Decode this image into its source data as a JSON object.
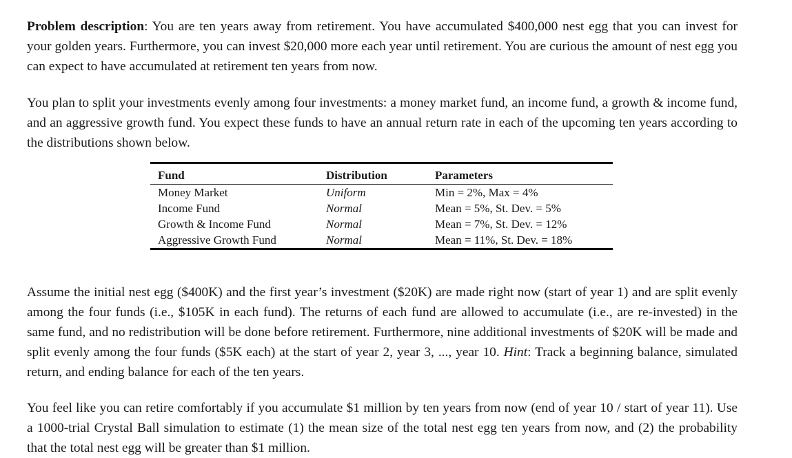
{
  "problem": {
    "label": "Problem description",
    "sep": ":",
    "text": " You are ten years away from retirement. You have accumulated $400,000 nest egg that you can invest for your golden years. Furthermore, you can invest $20,000 more each year until retirement. You are curious the amount of nest egg you can expect to have accumulated at retirement ten years from now."
  },
  "plan": {
    "text": "You plan to split your investments evenly among four investments: a money market fund, an income fund, a growth & income fund, and an aggressive growth fund. You expect these funds to have an annual return rate in each of the upcoming ten years according to the distributions shown below."
  },
  "table": {
    "headers": [
      "Fund",
      "Distribution",
      "Parameters"
    ],
    "rows": [
      {
        "fund": "Money Market",
        "distribution": "Uniform",
        "parameters": "Min = 2%, Max = 4%"
      },
      {
        "fund": "Income Fund",
        "distribution": "Normal",
        "parameters": "Mean = 5%, St. Dev. = 5%"
      },
      {
        "fund": "Growth & Income Fund",
        "distribution": "Normal",
        "parameters": "Mean = 7%, St. Dev. = 12%"
      },
      {
        "fund": "Aggressive Growth Fund",
        "distribution": "Normal",
        "parameters": "Mean = 11%, St. Dev. = 18%"
      }
    ]
  },
  "assume": {
    "text": "Assume the initial nest egg ($400K) and the first year’s investment ($20K) are made right now (start of year 1) and are split evenly among the four funds (i.e., $105K in each fund). The returns of each fund are allowed to accumulate (i.e., are re-invested) in the same fund, and no redistribution will be done before retirement. Furthermore, nine additional investments of $20K will be made and split evenly among the four funds ($5K each) at the start of year 2, year 3, ..., year 10. ",
    "hint_label": "Hint",
    "hint_text": ": Track a beginning balance, simulated return, and ending balance for each of the ten years."
  },
  "retire": {
    "text": "You feel like you can retire comfortably if you accumulate $1 million by ten years from now (end of year 10 / start of year 11). Use a 1000-trial Crystal Ball simulation to estimate (1) the mean size of the total nest egg ten years from now, and (2) the probability that the total nest egg will be greater than $1 million."
  }
}
